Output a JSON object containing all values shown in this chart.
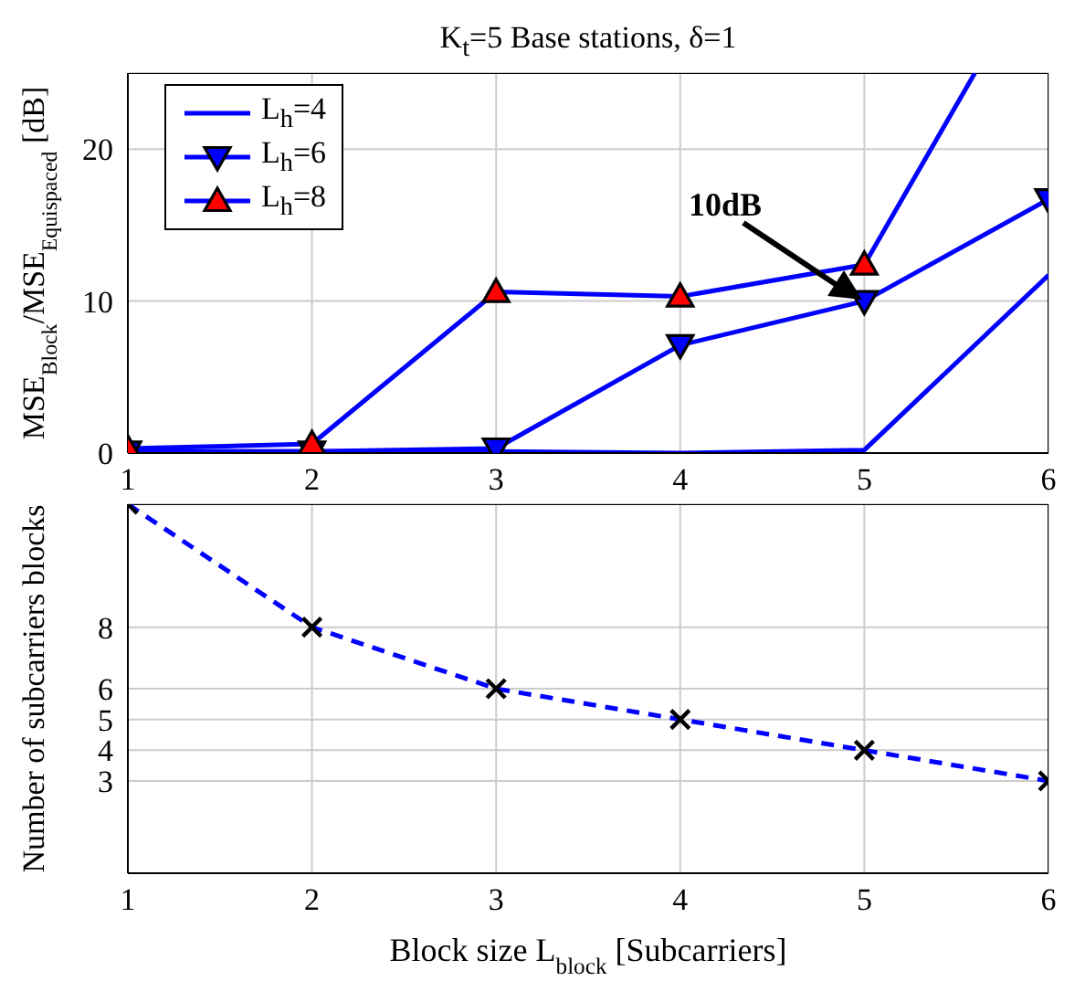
{
  "chart_data": [
    {
      "type": "line",
      "title": "K$_{t}$=5 Base stations, δ=1",
      "ylabel": "MSE$_{Block}$/MSE$_{Equispaced}$ [dB]",
      "x": [
        1,
        2,
        3,
        4,
        5,
        6
      ],
      "xlim": [
        1,
        6
      ],
      "xticks": [
        1,
        2,
        3,
        4,
        5,
        6
      ],
      "ylim": [
        0,
        25
      ],
      "yticks": [
        0,
        10,
        20
      ],
      "grid": true,
      "legend": "top left",
      "line_style": "solid",
      "series": [
        {
          "name": "L$_{h}$=4",
          "color": "#0000ff",
          "values": [
            0.1,
            0.1,
            0.1,
            0,
            0.2,
            11.7
          ]
        },
        {
          "name": "L$_{h}$=6",
          "color": "#0000ff",
          "marker": "triangle-down",
          "colors": [
            "#0000ff",
            "#0000ff",
            "#0000ff",
            "#0000ff",
            "#0000ff",
            "#0000ff"
          ],
          "values": [
            0.1,
            0.1,
            0.3,
            7.1,
            10,
            16.7
          ]
        },
        {
          "name": "L$_{h}$=8",
          "color": "#0000ff",
          "marker": "triangle",
          "x": [
            1,
            2,
            3,
            4,
            5,
            5.6
          ],
          "colors": [
            "#ff0000",
            "#ff0000",
            "#ff0000",
            "#ff0000",
            "#ff0000",
            null
          ],
          "values": [
            0.3,
            0.6,
            10.6,
            10.3,
            12.4,
            25
          ]
        }
      ],
      "annotations": [
        "10dB"
      ]
    },
    {
      "type": "line",
      "ylabel": "Number of subcarriers blocks",
      "xlabel": "Block size L$_{block}$ [Subcarriers]",
      "x": [
        1,
        2,
        3,
        4,
        5,
        6
      ],
      "xlim": [
        1,
        6
      ],
      "xticks": [
        1,
        2,
        3,
        4,
        5,
        6
      ],
      "ylim": [
        0,
        12
      ],
      "yticks": [
        3,
        4,
        5,
        6,
        8
      ],
      "grid": true,
      "legend": false,
      "line_style": "dashed",
      "series": [
        {
          "color": "#0000ff",
          "marker": "cross",
          "colors": [
            "#000000",
            "#000000",
            "#000000",
            "#000000",
            "#000000",
            "#000000"
          ],
          "values": [
            12,
            8,
            6,
            5,
            4,
            3
          ]
        }
      ]
    }
  ]
}
